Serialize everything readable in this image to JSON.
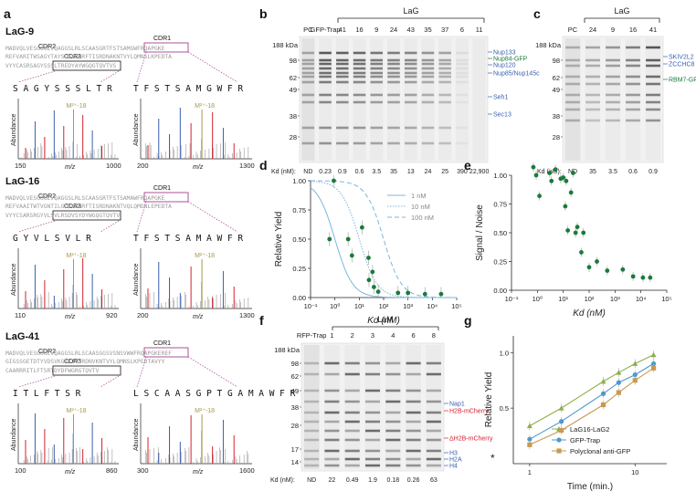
{
  "panels": {
    "a": "a",
    "b": "b",
    "c": "c",
    "d": "d",
    "e": "e",
    "f": "f",
    "g": "g"
  },
  "colors": {
    "green": "#1a7a3c",
    "blue": "#3a5fb0",
    "red": "#d6202f",
    "olive": "#a79a4a",
    "magenta": "#a4418e",
    "curve": "#7fb6dc",
    "tri": "#8fae4a",
    "circ": "#4f98c9",
    "sq": "#c79a52"
  },
  "panel_a": {
    "nanobodies": [
      {
        "name": "LaG-9",
        "cdr1": "CDR1",
        "cdr2": "CDR2",
        "cdr3": "CDR3",
        "seq_line1": "MADVQLVESGGGLVQAGGSLRLSCAASGRTFSTSAMGWFRQAPGKE",
        "seq_line2": "REFVARITWSAGYTAYSDSVKGRFTISRDNAKNTVYLQMNSLKPEDTA",
        "seq_line3": "VYYCASRSAGYSSSLTREDYAYWGQGTQVTVS",
        "frag_left": "S A G Y S S S L T R",
        "frag_right": "T F S T S A M G W F R",
        "xmin_left": "150",
        "xmax_left": "1000",
        "xmin_right": "200",
        "xmax_right": "1300"
      },
      {
        "name": "LaG-16",
        "cdr1": "CDR1",
        "cdr2": "CDR2",
        "cdr3": "CDR3",
        "seq_line1": "MADVQLVESGGGLVQAGGSLRLSCAASGRTFSTSAMAWFRQAPGKE",
        "seq_line2": "REFVAAITWTVGNTILGDSVKGRFTISRDNAKNTVQLQMDNLEPEDTA",
        "seq_line3": "VYYCSARSRGYVLSVLRSDVSYDYWGQGTQVTV",
        "frag_left": "G Y V L S V L R",
        "frag_right": "T F S T S A M A W F R",
        "xmin_left": "110",
        "xmax_left": "920",
        "xmin_right": "200",
        "xmax_right": "1300"
      },
      {
        "name": "LaG-41",
        "cdr1": "CDR1",
        "cdr2": "CDR2",
        "cdr3": "CDR3",
        "seq_line1": "MADVQLVESGGGLVQAGGSLRLSCAASGGSVSNSVWWFRQAPGKEREF",
        "seq_line2": "GIGSSGETDTYVDSVKGRFTVSRDNVKNTVYLQMNSLKPEDTAVYY",
        "seq_line3": "CAARRRITLFTSRTDYDFWGRGTQVTV",
        "frag_left": "I T L F T S R",
        "frag_right": "L S C A A S G P T G A M A W F R",
        "xmin_left": "100",
        "xmax_left": "860",
        "xmin_right": "300",
        "xmax_right": "1600"
      }
    ],
    "ylabel": "Abundance",
    "xlabel": "m/z",
    "precursor": "M²⁺-18"
  },
  "panel_b": {
    "mw_header": "188 kDa",
    "mw": [
      "98",
      "62",
      "49",
      "38",
      "28"
    ],
    "lanes": [
      "PC",
      "GFP-Trap",
      "41",
      "16",
      "9",
      "24",
      "43",
      "35",
      "37",
      "6",
      "11"
    ],
    "group": "LaG",
    "kd_label": "Kd (nM):",
    "kd_values": [
      "ND",
      "0.23",
      "0.9",
      "0.6",
      "3.5",
      "35",
      "13",
      "24",
      "25",
      "390",
      "22,900"
    ],
    "proteins": [
      "Nup133",
      "Nup84-GFP",
      "Nup120",
      "Nup85/Nup145c",
      "Seh1",
      "Sec13"
    ]
  },
  "panel_c": {
    "mw_header": "188 kDa",
    "mw": [
      "98",
      "62",
      "49",
      "38",
      "28"
    ],
    "lanes": [
      "PC",
      "24",
      "9",
      "16",
      "41"
    ],
    "group": "LaG",
    "kd_label": "Kd (nM):",
    "kd_values": [
      "ND",
      "35",
      "3.5",
      "0.6",
      "0.9"
    ],
    "proteins": [
      "SKIV2L2",
      "ZCCHC8",
      "RBM7-GFP"
    ]
  },
  "chart_data": [
    {
      "panel": "d",
      "type": "scatter",
      "title": "",
      "xlabel": "Kd (nM)",
      "ylabel": "Relative Yield",
      "x_scale": "log",
      "xlim": [
        0.1,
        100000
      ],
      "ylim": [
        0,
        1.0
      ],
      "xticks": [
        "10⁻¹",
        "10⁰",
        "10¹",
        "10²",
        "10³",
        "10⁴",
        "10⁵"
      ],
      "yticks": [
        "0.00",
        "0.25",
        "0.50",
        "0.75",
        "1.00"
      ],
      "legend": [
        "1 nM",
        "10 nM",
        "100 nM"
      ],
      "points": [
        {
          "x": 0.9,
          "y": 1.0
        },
        {
          "x": 0.6,
          "y": 0.5
        },
        {
          "x": 3.5,
          "y": 0.5
        },
        {
          "x": 5,
          "y": 0.36
        },
        {
          "x": 13,
          "y": 0.6
        },
        {
          "x": 24,
          "y": 0.34
        },
        {
          "x": 25,
          "y": 0.15
        },
        {
          "x": 35,
          "y": 0.22
        },
        {
          "x": 40,
          "y": 0.09
        },
        {
          "x": 60,
          "y": 0.05
        },
        {
          "x": 390,
          "y": 0.04
        },
        {
          "x": 1000,
          "y": 0.04
        },
        {
          "x": 5000,
          "y": 0.03
        },
        {
          "x": 22900,
          "y": 0.03
        }
      ],
      "curves_kd": [
        1,
        10,
        100
      ]
    },
    {
      "panel": "e",
      "type": "scatter",
      "title": "",
      "xlabel": "Kd (nM)",
      "ylabel": "Signal / Noise",
      "x_scale": "log",
      "xlim": [
        0.1,
        100000
      ],
      "ylim": [
        0,
        1.0
      ],
      "xticks": [
        "10⁻¹",
        "10⁰",
        "10¹",
        "10²",
        "10³",
        "10⁴",
        "10⁵"
      ],
      "yticks": [
        "0.00",
        "0.25",
        "0.50",
        "0.75",
        "1.00"
      ],
      "points": [
        {
          "x": 0.7,
          "y": 1.07
        },
        {
          "x": 0.9,
          "y": 1.0
        },
        {
          "x": 1.2,
          "y": 0.82
        },
        {
          "x": 3,
          "y": 1.02
        },
        {
          "x": 3.5,
          "y": 0.95
        },
        {
          "x": 5,
          "y": 1.05
        },
        {
          "x": 8,
          "y": 0.97
        },
        {
          "x": 10,
          "y": 0.98
        },
        {
          "x": 12,
          "y": 0.73
        },
        {
          "x": 13,
          "y": 0.95
        },
        {
          "x": 15,
          "y": 0.52
        },
        {
          "x": 20,
          "y": 0.85
        },
        {
          "x": 24,
          "y": 1.02
        },
        {
          "x": 30,
          "y": 0.5
        },
        {
          "x": 35,
          "y": 0.55
        },
        {
          "x": 50,
          "y": 0.33
        },
        {
          "x": 60,
          "y": 0.5
        },
        {
          "x": 100,
          "y": 0.2
        },
        {
          "x": 200,
          "y": 0.25
        },
        {
          "x": 500,
          "y": 0.17
        },
        {
          "x": 2000,
          "y": 0.18
        },
        {
          "x": 5000,
          "y": 0.12
        },
        {
          "x": 12000,
          "y": 0.11
        },
        {
          "x": 22900,
          "y": 0.11
        }
      ]
    },
    {
      "panel": "g",
      "type": "line",
      "title": "",
      "xlabel": "Time (min.)",
      "ylabel": "Relative Yield",
      "x_scale": "log",
      "xlim": [
        0.7,
        20
      ],
      "ylim": [
        0,
        1.15
      ],
      "xticks": [
        "1",
        "10"
      ],
      "yticks": [
        "0.5",
        "1.0"
      ],
      "series": [
        {
          "name": "LaG16-LaG2",
          "x": [
            1,
            2,
            5,
            7,
            10,
            15
          ],
          "y": [
            0.34,
            0.5,
            0.74,
            0.82,
            0.9,
            0.98
          ]
        },
        {
          "name": "GFP-Trap",
          "x": [
            1,
            2,
            5,
            7,
            10,
            15
          ],
          "y": [
            0.22,
            0.38,
            0.63,
            0.73,
            0.8,
            0.9
          ]
        },
        {
          "name": "Polyclonal anti-GFP",
          "x": [
            1,
            2,
            5,
            7,
            10,
            15
          ],
          "y": [
            0.17,
            0.3,
            0.53,
            0.64,
            0.75,
            0.86
          ]
        }
      ]
    }
  ],
  "panel_f": {
    "mw_header": "188 kDa",
    "mw": [
      "98",
      "62",
      "49",
      "38",
      "28",
      "17",
      "14"
    ],
    "lanes": [
      "RFP-Trap",
      "1",
      "2",
      "3",
      "4",
      "6",
      "8"
    ],
    "group": "LaM",
    "kd_label": "Kd (nM):",
    "kd_values": [
      "ND",
      "22",
      "0.49",
      "1.9",
      "0.18",
      "0.26",
      "63"
    ],
    "proteins": [
      "Nap1",
      "H2B-mCherry",
      "ΔH2B-mCherry",
      "H3",
      "H2A",
      "H4"
    ],
    "asterisk": "*"
  }
}
